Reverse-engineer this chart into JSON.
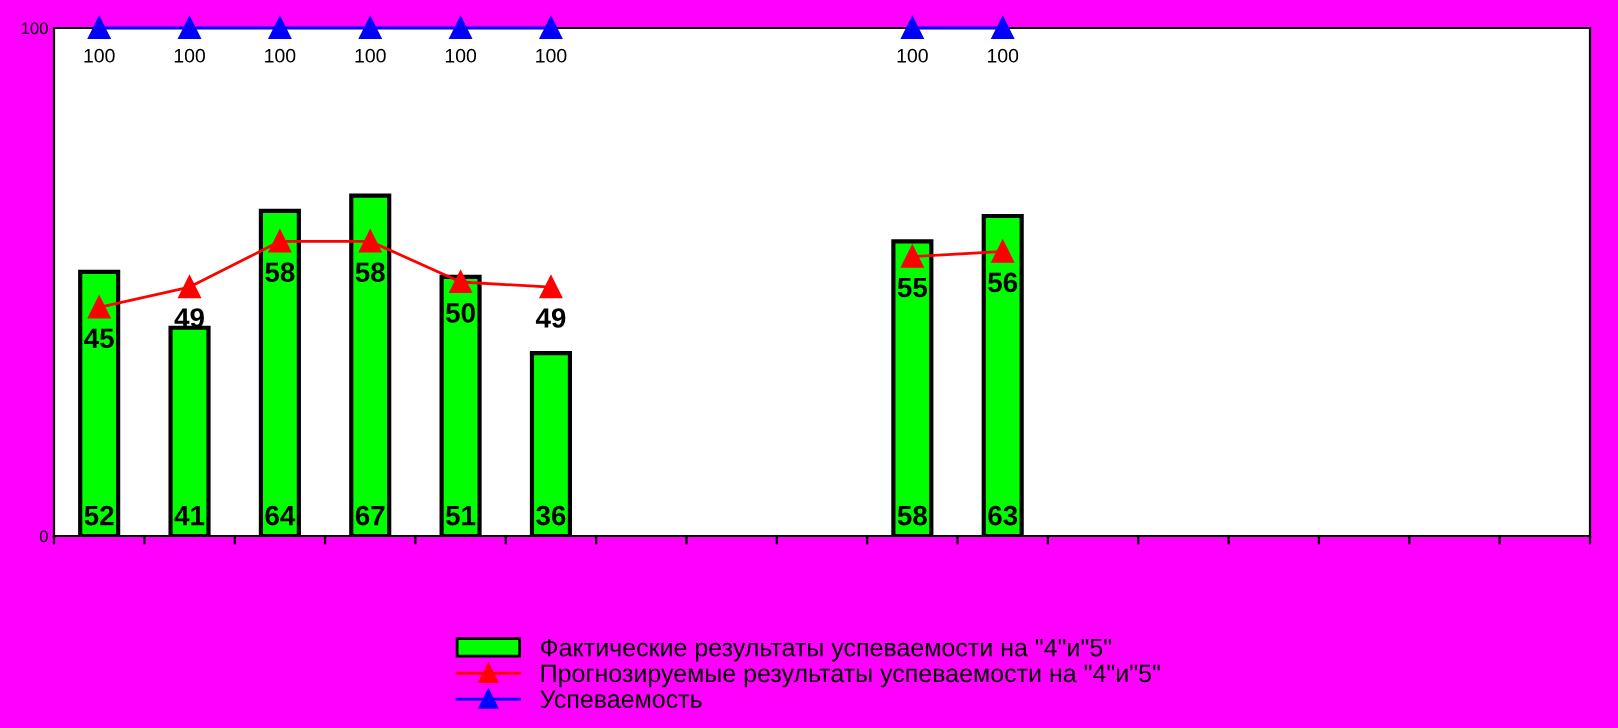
{
  "chart_data": {
    "type": "bar",
    "categories": [
      null,
      null,
      null,
      null,
      null,
      null,
      null,
      null,
      null,
      null,
      null,
      null,
      null,
      null,
      null,
      null,
      null
    ],
    "ylim": [
      0,
      100
    ],
    "yticks": [
      0,
      100
    ],
    "grid": false,
    "legend": "bottom",
    "data_labels": true,
    "series": [
      {
        "name": "Фактические результаты успеваемости на \"4\"и\"5\"",
        "color": "#00ff00",
        "values": [
          52,
          41,
          64,
          67,
          51,
          36,
          null,
          null,
          null,
          58,
          63,
          null,
          null,
          null,
          null,
          null,
          null
        ]
      },
      {
        "name": "Прогнозируемые результаты успеваемости на \"4\"и\"5\"",
        "color": "#ff0000",
        "type": "line",
        "marker": "triangle",
        "values": [
          45,
          49,
          58,
          58,
          50,
          49,
          null,
          null,
          null,
          55,
          56,
          null,
          null,
          null,
          null,
          null,
          null
        ]
      },
      {
        "name": "Успеваемость",
        "color": "#0000ff",
        "type": "line",
        "marker": "triangle",
        "values": [
          100,
          100,
          100,
          100,
          100,
          100,
          null,
          null,
          null,
          100,
          100,
          null,
          null,
          null,
          null,
          null,
          null
        ]
      }
    ]
  }
}
